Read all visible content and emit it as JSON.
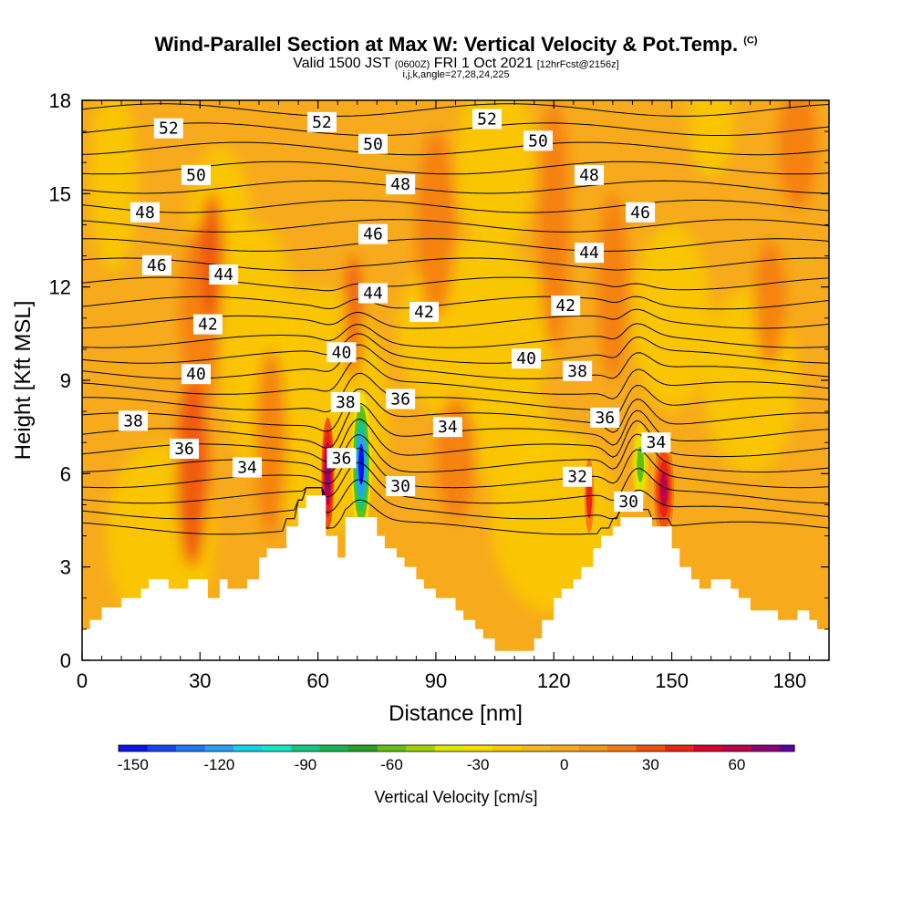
{
  "header": {
    "title_main": "Wind-Parallel Section at Max W: Vertical Velocity & Pot.Temp.",
    "title_mark": "(C)",
    "valid_prefix": "Valid 1500 JST",
    "valid_utc": "(0600Z)",
    "valid_day": "FRI 1 Oct 2021",
    "valid_fcst": "[12hrFcst@2156z]",
    "params": "i,j,k,angle=27,28,24,225"
  },
  "colors": {
    "background_field": "#f7ab1c",
    "terrain": "#ffffff",
    "contour": "#000000"
  },
  "chart_data": {
    "type": "heatmap",
    "xlabel": "Distance [nm]",
    "ylabel": "Height [Kft MSL]",
    "xlim": [
      0,
      190
    ],
    "ylim": [
      0,
      18
    ],
    "xticks": [
      "0",
      "30",
      "60",
      "90",
      "120",
      "150",
      "180"
    ],
    "yticks": [
      "0",
      "3",
      "6",
      "9",
      "12",
      "15",
      "18"
    ],
    "grid": false,
    "colorbar": {
      "label": "Vertical Velocity [cm/s]",
      "min": -155,
      "max": 80,
      "step": 10,
      "tick_values": [
        -150,
        -120,
        -90,
        -60,
        -30,
        0,
        30,
        60
      ],
      "tick_labels": [
        "-150",
        "-120",
        "-90",
        "-60",
        "-30",
        "0",
        "30",
        "60"
      ],
      "colors": [
        "#0a14e6",
        "#1446f0",
        "#1e78f5",
        "#28a0f5",
        "#14d2e6",
        "#14e6c8",
        "#14c882",
        "#14b450",
        "#28a028",
        "#64be14",
        "#a0d20a",
        "#dce600",
        "#f5e100",
        "#fac800",
        "#f7b71a",
        "#f7ab1c",
        "#f59714",
        "#f57d0f",
        "#f0500a",
        "#eb2314",
        "#d7002d",
        "#be004b",
        "#8c0078",
        "#5a00a0"
      ]
    },
    "terrain_profile": {
      "x": [
        0,
        2,
        2,
        5,
        5,
        10,
        10,
        15,
        15,
        17,
        17,
        22,
        22,
        27,
        27,
        32,
        32,
        35,
        35,
        37,
        37,
        42,
        42,
        45,
        45,
        47,
        47,
        52,
        52,
        55,
        55,
        57,
        57,
        60,
        60,
        62,
        62,
        65,
        65,
        67,
        67,
        70,
        70,
        75,
        75,
        77,
        77,
        80,
        80,
        82,
        82,
        85,
        85,
        87,
        87,
        90,
        90,
        95,
        95,
        97,
        97,
        100,
        100,
        102,
        102,
        105,
        105,
        115,
        115,
        117,
        117,
        120,
        120,
        122,
        122,
        125,
        125,
        127,
        127,
        130,
        130,
        132,
        132,
        135,
        135,
        137,
        137,
        140,
        140,
        145,
        145,
        150,
        150,
        152,
        152,
        155,
        155,
        157,
        157,
        160,
        160,
        165,
        165,
        167,
        167,
        170,
        170,
        175,
        175,
        177,
        177,
        182,
        182,
        185,
        185,
        187,
        187,
        190
      ],
      "y": [
        1.0,
        1.0,
        1.3,
        1.3,
        1.7,
        1.7,
        2.0,
        2.0,
        2.3,
        2.3,
        2.6,
        2.6,
        2.3,
        2.3,
        2.6,
        2.6,
        2.0,
        2.0,
        2.6,
        2.6,
        2.3,
        2.3,
        2.6,
        2.6,
        3.3,
        3.3,
        3.6,
        3.6,
        4.3,
        4.3,
        4.9,
        4.9,
        5.3,
        5.3,
        5.3,
        5.3,
        4.0,
        4.0,
        3.3,
        3.3,
        4.6,
        4.6,
        4.6,
        4.6,
        4.0,
        4.0,
        3.6,
        3.6,
        3.3,
        3.3,
        3.0,
        3.0,
        2.6,
        2.6,
        2.3,
        2.3,
        2.0,
        2.0,
        1.6,
        1.6,
        1.3,
        1.3,
        1.0,
        1.0,
        0.7,
        0.7,
        0.3,
        0.3,
        0.7,
        0.7,
        1.3,
        1.3,
        2.0,
        2.0,
        2.3,
        2.3,
        2.6,
        2.6,
        3.0,
        3.0,
        3.6,
        3.6,
        4.0,
        4.0,
        4.3,
        4.3,
        4.6,
        4.6,
        4.6,
        4.6,
        4.3,
        4.3,
        3.6,
        3.6,
        3.0,
        3.0,
        2.6,
        2.6,
        2.3,
        2.3,
        2.6,
        2.6,
        2.3,
        2.3,
        2.0,
        2.0,
        1.6,
        1.6,
        1.6,
        1.6,
        1.3,
        1.3,
        1.6,
        1.6,
        1.3,
        1.3,
        1.0,
        1.0
      ]
    },
    "theta_labels": [
      {
        "text": "52",
        "x": 22,
        "y": 17.1
      },
      {
        "text": "52",
        "x": 61,
        "y": 17.3
      },
      {
        "text": "52",
        "x": 103,
        "y": 17.4
      },
      {
        "text": "50",
        "x": 29,
        "y": 15.6
      },
      {
        "text": "50",
        "x": 74,
        "y": 16.6
      },
      {
        "text": "50",
        "x": 116,
        "y": 16.7
      },
      {
        "text": "48",
        "x": 16,
        "y": 14.4
      },
      {
        "text": "48",
        "x": 81,
        "y": 15.3
      },
      {
        "text": "48",
        "x": 129,
        "y": 15.6
      },
      {
        "text": "46",
        "x": 19,
        "y": 12.7
      },
      {
        "text": "46",
        "x": 74,
        "y": 13.7
      },
      {
        "text": "46",
        "x": 142,
        "y": 14.4
      },
      {
        "text": "44",
        "x": 36,
        "y": 12.4
      },
      {
        "text": "44",
        "x": 74,
        "y": 11.8
      },
      {
        "text": "44",
        "x": 129,
        "y": 13.1
      },
      {
        "text": "42",
        "x": 32,
        "y": 10.8
      },
      {
        "text": "42",
        "x": 87,
        "y": 11.2
      },
      {
        "text": "42",
        "x": 123,
        "y": 11.4
      },
      {
        "text": "40",
        "x": 29,
        "y": 9.2
      },
      {
        "text": "40",
        "x": 66,
        "y": 9.9
      },
      {
        "text": "40",
        "x": 113,
        "y": 9.7
      },
      {
        "text": "38",
        "x": 13,
        "y": 7.7
      },
      {
        "text": "38",
        "x": 67,
        "y": 8.3
      },
      {
        "text": "38",
        "x": 126,
        "y": 9.3
      },
      {
        "text": "36",
        "x": 26,
        "y": 6.8
      },
      {
        "text": "36",
        "x": 81,
        "y": 8.4
      },
      {
        "text": "36",
        "x": 133,
        "y": 7.8
      },
      {
        "text": "36",
        "x": 66,
        "y": 6.5
      },
      {
        "text": "34",
        "x": 42,
        "y": 6.2
      },
      {
        "text": "34",
        "x": 93,
        "y": 7.5
      },
      {
        "text": "34",
        "x": 146,
        "y": 7.0
      },
      {
        "text": "32",
        "x": 126,
        "y": 5.9
      },
      {
        "text": "30",
        "x": 81,
        "y": 5.6
      },
      {
        "text": "30",
        "x": 139,
        "y": 5.1
      }
    ]
  }
}
